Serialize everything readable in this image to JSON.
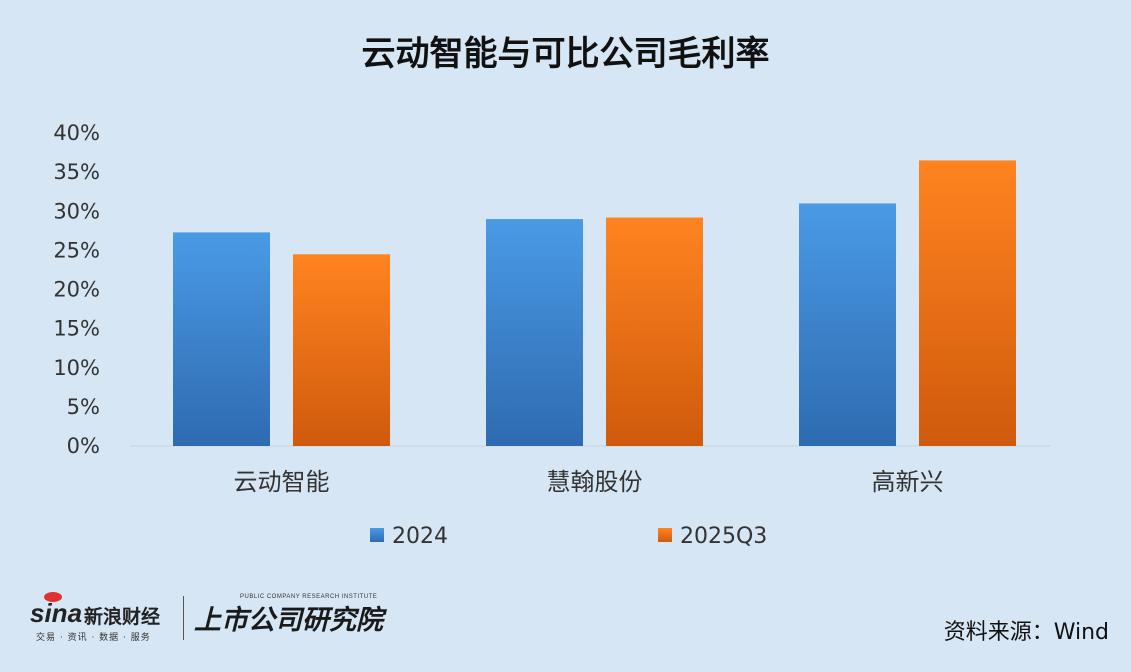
{
  "chart_data": {
    "type": "bar",
    "title": "云动智能与可比公司毛利率",
    "categories": [
      "云动智能",
      "慧翰股份",
      "高新兴"
    ],
    "series": [
      {
        "name": "2024",
        "values": [
          27.3,
          29.0,
          31.0
        ],
        "color": "#3b84cf"
      },
      {
        "name": "2025Q3",
        "values": [
          24.5,
          29.2,
          36.5
        ],
        "color": "#f07a1c"
      }
    ],
    "ylim": [
      0,
      40
    ],
    "yticks": [
      "0%",
      "5%",
      "10%",
      "15%",
      "20%",
      "25%",
      "30%",
      "35%",
      "40%"
    ],
    "ytick_values": [
      0,
      5,
      10,
      15,
      20,
      25,
      30,
      35,
      40
    ],
    "grid": false,
    "legend": "bottom"
  },
  "source": "资料来源：Wind",
  "logo": {
    "sina": "sina",
    "sina_cn": "新浪财经",
    "sina_sub": "交易 · 资讯 · 数据 · 服务",
    "pub_cn": "上市公司研究院",
    "pub_en": "PUBLIC COMPANY RESEARCH INSTITUTE"
  }
}
